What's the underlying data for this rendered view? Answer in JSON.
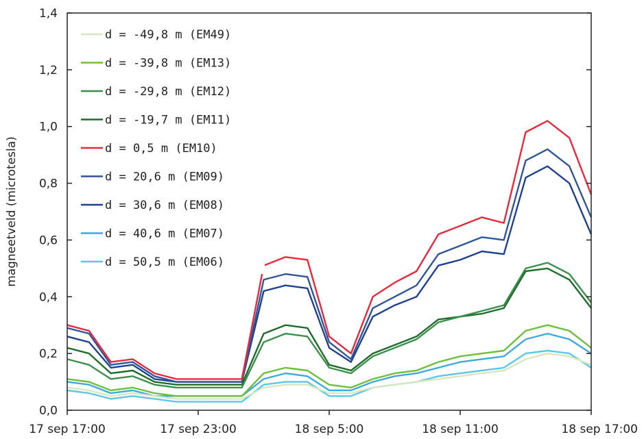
{
  "chart_data": {
    "type": "line",
    "title": "",
    "xlabel": "",
    "ylabel": "magneetveld (microtesla)",
    "ylim": [
      0,
      1.4
    ],
    "yticks": [
      "0,0",
      "0,2",
      "0,4",
      "0,6",
      "0,8",
      "1,0",
      "1,2",
      "1,4"
    ],
    "xlim_hours": [
      0,
      24
    ],
    "xticks": [
      "17 sep 17:00",
      "17 sep 23:00",
      "18 sep 5:00",
      "18 sep 11:00",
      "18 sep 17:00"
    ],
    "grid": false,
    "legend_position": "top-left",
    "x_hours_from_17sep_17h": [
      0,
      1,
      2,
      3,
      4,
      5,
      6,
      7,
      8,
      9,
      10,
      11,
      12,
      13,
      14,
      15,
      16,
      17,
      18,
      19,
      20,
      21,
      22,
      23,
      24
    ],
    "series": [
      {
        "name": "d = -49,8 m (EM49)",
        "color": "#d7e8c0",
        "values": [
          0.08,
          0.07,
          0.05,
          0.06,
          0.05,
          0.04,
          0.04,
          0.04,
          0.04,
          0.08,
          0.09,
          0.09,
          0.06,
          0.06,
          0.08,
          0.09,
          0.1,
          0.11,
          0.12,
          0.13,
          0.14,
          0.18,
          0.2,
          0.19,
          0.16
        ]
      },
      {
        "name": "d = -39,8 m (EM13)",
        "color": "#6cbf3c",
        "values": [
          0.11,
          0.1,
          0.07,
          0.08,
          0.06,
          0.05,
          0.05,
          0.05,
          0.05,
          0.13,
          0.15,
          0.14,
          0.09,
          0.08,
          0.11,
          0.13,
          0.14,
          0.17,
          0.19,
          0.2,
          0.21,
          0.28,
          0.3,
          0.28,
          0.22
        ]
      },
      {
        "name": "d = -29,8 m (EM12)",
        "color": "#3a8f4a",
        "values": [
          0.18,
          0.16,
          0.11,
          0.12,
          0.09,
          0.08,
          0.08,
          0.08,
          0.08,
          0.24,
          0.27,
          0.26,
          0.15,
          0.13,
          0.19,
          0.22,
          0.25,
          0.31,
          0.33,
          0.35,
          0.37,
          0.5,
          0.52,
          0.48,
          0.38
        ]
      },
      {
        "name": "d = -19,7 m (EM11)",
        "color": "#1e6b2a",
        "values": [
          0.22,
          0.2,
          0.13,
          0.14,
          0.1,
          0.09,
          0.09,
          0.09,
          0.09,
          0.27,
          0.3,
          0.29,
          0.16,
          0.14,
          0.2,
          0.23,
          0.26,
          0.32,
          0.33,
          0.34,
          0.36,
          0.49,
          0.5,
          0.46,
          0.36
        ]
      },
      {
        "name": "d = 0,5 m (EM10)",
        "color": "#e8283c",
        "values": [
          0.3,
          0.28,
          0.17,
          0.18,
          0.13,
          0.11,
          0.11,
          0.11,
          0.11,
          0.51,
          0.54,
          0.53,
          0.26,
          0.2,
          0.4,
          0.45,
          0.49,
          0.62,
          0.65,
          0.68,
          0.66,
          0.98,
          1.02,
          0.96,
          0.76
        ]
      },
      {
        "name": "d = 20,6 m (EM09)",
        "color": "#2f5597",
        "values": [
          0.29,
          0.27,
          0.16,
          0.17,
          0.12,
          0.1,
          0.1,
          0.1,
          0.1,
          0.46,
          0.48,
          0.47,
          0.24,
          0.18,
          0.36,
          0.4,
          0.44,
          0.55,
          0.58,
          0.61,
          0.6,
          0.88,
          0.92,
          0.86,
          0.68
        ]
      },
      {
        "name": "d = 30,6 m (EM08)",
        "color": "#1f3f8f",
        "values": [
          0.26,
          0.24,
          0.15,
          0.16,
          0.11,
          0.1,
          0.1,
          0.1,
          0.1,
          0.42,
          0.44,
          0.43,
          0.22,
          0.17,
          0.33,
          0.37,
          0.4,
          0.51,
          0.53,
          0.56,
          0.55,
          0.82,
          0.86,
          0.8,
          0.62
        ]
      },
      {
        "name": "d = 40,6 m (EM07)",
        "color": "#3fa8dc",
        "values": [
          0.1,
          0.09,
          0.06,
          0.07,
          0.05,
          0.05,
          0.05,
          0.05,
          0.05,
          0.11,
          0.13,
          0.12,
          0.07,
          0.07,
          0.1,
          0.12,
          0.13,
          0.15,
          0.17,
          0.18,
          0.19,
          0.25,
          0.27,
          0.25,
          0.2
        ]
      },
      {
        "name": "d = 50,5 m (EM06)",
        "color": "#5bc6e8",
        "values": [
          0.07,
          0.06,
          0.04,
          0.05,
          0.04,
          0.03,
          0.03,
          0.03,
          0.03,
          0.09,
          0.1,
          0.1,
          0.05,
          0.05,
          0.08,
          0.09,
          0.1,
          0.12,
          0.13,
          0.14,
          0.15,
          0.2,
          0.21,
          0.2,
          0.15
        ]
      }
    ]
  }
}
